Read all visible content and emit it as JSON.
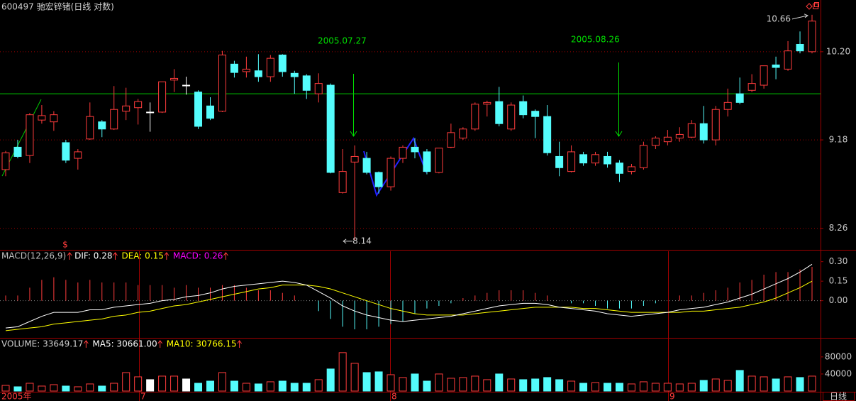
{
  "header": "600497 驰宏锌锗(日线 对数)",
  "x_labels": [
    "2005年",
    "7",
    "8",
    "9"
  ],
  "period": "日线",
  "chart_data": [
    {
      "type": "candlestick",
      "open": [
        8.86,
        9.1,
        9.01,
        9.4,
        9.38,
        9.15,
        8.98,
        9.19,
        9.38,
        9.3,
        9.5,
        9.54,
        9.49,
        9.49,
        9.86,
        9.8,
        9.72,
        9.56,
        9.5,
        10.05,
        9.96,
        9.97,
        9.9,
        10.16,
        9.94,
        9.91,
        9.7,
        9.8,
        8.62,
        8.94,
        8.98,
        8.83,
        8.68,
        8.98,
        9.1,
        9.05,
        8.83,
        9.1,
        9.2,
        9.3,
        9.58,
        9.61,
        9.3,
        9.61,
        9.5,
        9.44,
        9.0,
        8.84,
        9.02,
        8.93,
        9.0,
        8.93,
        8.84,
        8.88,
        9.12,
        9.16,
        9.2,
        9.21,
        9.36,
        9.18,
        9.52,
        9.7,
        9.74,
        9.8,
        10.04,
        9.99,
        10.29,
        10.2
      ],
      "high": [
        9.06,
        9.18,
        9.48,
        9.57,
        9.5,
        9.18,
        9.08,
        9.6,
        9.4,
        9.79,
        9.77,
        9.64,
        9.6,
        9.84,
        9.99,
        9.9,
        9.74,
        9.66,
        10.21,
        10.09,
        10.14,
        10.17,
        10.16,
        10.17,
        9.97,
        9.93,
        9.94,
        9.82,
        9.08,
        9.12,
        9.05,
        8.84,
        9.0,
        9.12,
        9.2,
        9.08,
        9.09,
        9.36,
        9.32,
        9.6,
        9.62,
        9.78,
        9.6,
        9.68,
        9.52,
        9.57,
        9.16,
        9.12,
        9.05,
        9.05,
        9.05,
        8.96,
        8.92,
        9.16,
        9.22,
        9.29,
        9.32,
        9.4,
        9.56,
        9.56,
        9.76,
        9.89,
        9.93,
        10.03,
        10.14,
        10.33,
        10.45,
        10.66
      ],
      "low": [
        8.79,
        8.98,
        8.93,
        9.36,
        9.28,
        8.93,
        8.86,
        9.18,
        9.21,
        9.29,
        9.4,
        9.35,
        9.27,
        9.48,
        9.72,
        9.69,
        9.3,
        9.4,
        9.49,
        9.89,
        9.89,
        9.84,
        9.84,
        9.9,
        9.7,
        9.64,
        9.6,
        8.82,
        8.61,
        8.14,
        8.81,
        8.61,
        8.64,
        8.93,
        8.98,
        8.81,
        8.82,
        9.09,
        9.18,
        9.28,
        9.44,
        9.33,
        9.28,
        9.42,
        9.2,
        9.01,
        8.79,
        8.83,
        8.9,
        8.9,
        8.88,
        8.73,
        8.81,
        8.86,
        9.08,
        9.12,
        9.16,
        9.2,
        9.14,
        9.12,
        9.44,
        9.58,
        9.72,
        9.76,
        9.87,
        9.97,
        10.18,
        10.18
      ],
      "close": [
        9.04,
        9.0,
        9.46,
        9.45,
        9.46,
        8.96,
        9.05,
        9.44,
        9.3,
        9.52,
        9.56,
        9.61,
        9.49,
        9.84,
        9.88,
        9.8,
        9.33,
        9.42,
        10.16,
        9.95,
        9.99,
        9.9,
        10.12,
        9.96,
        9.9,
        9.74,
        9.82,
        8.83,
        8.84,
        9.0,
        8.83,
        8.68,
        8.98,
        9.1,
        9.05,
        8.84,
        9.09,
        9.26,
        9.3,
        9.58,
        9.6,
        9.36,
        9.57,
        9.46,
        9.44,
        9.04,
        8.88,
        9.05,
        8.93,
        9.02,
        8.92,
        8.82,
        8.89,
        9.12,
        9.2,
        9.21,
        9.24,
        9.36,
        9.18,
        9.52,
        9.6,
        9.6,
        9.82,
        10.03,
        10.01,
        10.21,
        10.21,
        10.58
      ],
      "ylim": [
        8.05,
        10.85
      ],
      "log_scale": true,
      "yticks": [
        8.26,
        9.18,
        {
          "value": 10.2,
          "label": "10.20"
        }
      ],
      "grid": true,
      "up_color": "#ff3c3c",
      "down_color": "#54fcfc",
      "flat_color": "#ffffff",
      "reference_line": {
        "value": 9.7,
        "color": "#00c800"
      },
      "annotations": [
        "2005.07.27",
        "2005.08.26"
      ],
      "high_label": "10.66",
      "low_label": "8.14",
      "marker": "$"
    },
    {
      "type": "macd",
      "title": "MACD(12,26,9)",
      "series": [
        {
          "name": "DIF: 0.28",
          "color": "#ffffff",
          "values": [
            -0.21,
            -0.2,
            -0.16,
            -0.12,
            -0.09,
            -0.09,
            -0.09,
            -0.07,
            -0.07,
            -0.05,
            -0.04,
            -0.03,
            -0.02,
            0,
            0.01,
            0.03,
            0.04,
            0.06,
            0.09,
            0.11,
            0.12,
            0.13,
            0.14,
            0.15,
            0.14,
            0.12,
            0.07,
            0.02,
            -0.04,
            -0.08,
            -0.11,
            -0.13,
            -0.15,
            -0.16,
            -0.15,
            -0.14,
            -0.13,
            -0.12,
            -0.1,
            -0.08,
            -0.06,
            -0.04,
            -0.03,
            -0.02,
            -0.02,
            -0.03,
            -0.05,
            -0.06,
            -0.07,
            -0.08,
            -0.1,
            -0.11,
            -0.12,
            -0.11,
            -0.1,
            -0.09,
            -0.07,
            -0.06,
            -0.05,
            -0.03,
            -0.01,
            0.02,
            0.05,
            0.09,
            0.13,
            0.17,
            0.22,
            0.28
          ]
        },
        {
          "name": "DEA: 0.15",
          "color": "#ffff00",
          "values": [
            -0.23,
            -0.22,
            -0.21,
            -0.2,
            -0.18,
            -0.17,
            -0.16,
            -0.15,
            -0.14,
            -0.12,
            -0.11,
            -0.09,
            -0.08,
            -0.06,
            -0.04,
            -0.03,
            -0.01,
            0.01,
            0.03,
            0.05,
            0.07,
            0.09,
            0.1,
            0.12,
            0.12,
            0.12,
            0.11,
            0.09,
            0.06,
            0.03,
            0,
            -0.03,
            -0.06,
            -0.08,
            -0.1,
            -0.11,
            -0.11,
            -0.11,
            -0.11,
            -0.1,
            -0.09,
            -0.08,
            -0.07,
            -0.06,
            -0.05,
            -0.05,
            -0.05,
            -0.05,
            -0.06,
            -0.06,
            -0.07,
            -0.08,
            -0.09,
            -0.09,
            -0.09,
            -0.09,
            -0.09,
            -0.08,
            -0.08,
            -0.07,
            -0.06,
            -0.05,
            -0.03,
            -0.01,
            0.02,
            0.06,
            0.1,
            0.15
          ]
        },
        {
          "name": "MACD: 0.26",
          "color": "#ff00ff",
          "values": [
            0.04,
            0.04,
            0.1,
            0.16,
            0.18,
            0.16,
            0.14,
            0.16,
            0.14,
            0.14,
            0.14,
            0.12,
            0.12,
            0.12,
            0.1,
            0.12,
            0.1,
            0.1,
            0.12,
            0.12,
            0.1,
            0.08,
            0.08,
            0.06,
            0.04,
            0,
            -0.08,
            -0.14,
            -0.2,
            -0.22,
            -0.22,
            -0.2,
            -0.18,
            -0.16,
            -0.1,
            -0.06,
            -0.04,
            -0.02,
            0.02,
            0.04,
            0.06,
            0.08,
            0.08,
            0.08,
            0.06,
            0.04,
            0,
            -0.02,
            -0.02,
            -0.04,
            -0.06,
            -0.06,
            -0.06,
            -0.04,
            -0.02,
            0,
            0.04,
            0.04,
            0.06,
            0.08,
            0.1,
            0.14,
            0.16,
            0.2,
            0.22,
            0.22,
            0.24,
            0.26
          ]
        }
      ],
      "ylim": [
        -0.28,
        0.38
      ],
      "yticks": [
        {
          "value": 0.3,
          "label": "0.30"
        },
        0.15,
        {
          "value": 0,
          "label": "0.00"
        }
      ],
      "title_color": "#c0c0c0"
    },
    {
      "type": "bar",
      "title": "VOLUME: 33649.17",
      "legend": [
        {
          "name": "MA5: 30661.00",
          "color": "#ffffff"
        },
        {
          "name": "MA10: 30766.15",
          "color": "#ffff00"
        }
      ],
      "values": [
        13300,
        10000,
        18300,
        11700,
        15000,
        11700,
        10000,
        16700,
        11700,
        18300,
        43300,
        33300,
        26700,
        35000,
        35000,
        28300,
        18300,
        23300,
        43300,
        23300,
        18300,
        16700,
        21700,
        23300,
        18300,
        18300,
        26700,
        51700,
        90000,
        65000,
        43300,
        45000,
        38300,
        31700,
        40000,
        23300,
        40000,
        30000,
        31700,
        35000,
        26700,
        40000,
        28300,
        26700,
        28300,
        31700,
        26700,
        23300,
        18300,
        20000,
        18300,
        18300,
        16700,
        21700,
        18300,
        18300,
        16700,
        18300,
        25000,
        28300,
        25000,
        48300,
        35000,
        33300,
        28300,
        33300,
        31700,
        35000
      ],
      "ylim": [
        0,
        123000
      ],
      "yticks": [
        40000,
        80000
      ]
    }
  ]
}
